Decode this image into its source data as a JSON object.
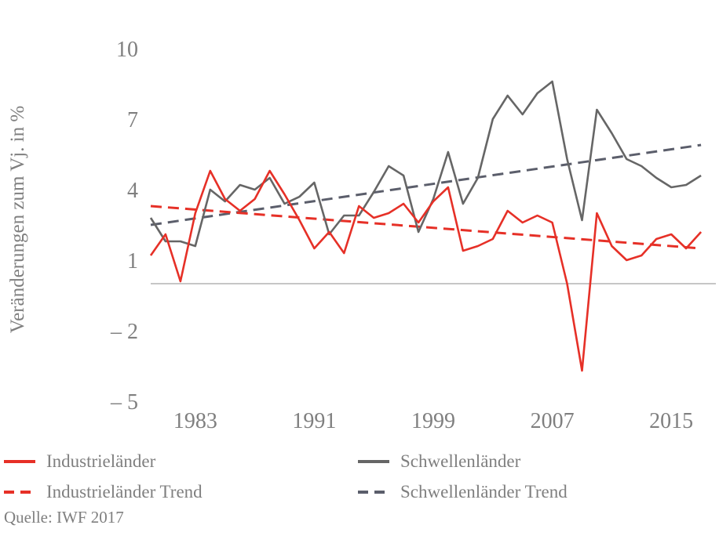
{
  "chart_data": {
    "type": "line",
    "title": "",
    "xlabel": "",
    "ylabel": "Veränderungen zum Vj. in %",
    "x": [
      1980,
      1981,
      1982,
      1983,
      1984,
      1985,
      1986,
      1987,
      1988,
      1989,
      1990,
      1991,
      1992,
      1993,
      1994,
      1995,
      1996,
      1997,
      1998,
      1999,
      2000,
      2001,
      2002,
      2003,
      2004,
      2005,
      2006,
      2007,
      2008,
      2009,
      2010,
      2011,
      2012,
      2013,
      2014,
      2015,
      2016,
      2017,
      2018
    ],
    "xticks": [
      "1983",
      "1991",
      "1999",
      "2007",
      "2015"
    ],
    "yticks": [
      "10",
      "7",
      "4",
      "1",
      "– 2",
      "– 5"
    ],
    "ylim": [
      -5,
      10
    ],
    "xlim": [
      1980,
      2018
    ],
    "baseline": 0,
    "grid": false,
    "series": [
      {
        "name": "Industrieländer",
        "style": "solid",
        "color": "#e63027",
        "values": [
          1.2,
          2.1,
          0.1,
          3.0,
          4.8,
          3.6,
          3.1,
          3.6,
          4.8,
          3.8,
          2.7,
          1.5,
          2.2,
          1.3,
          3.3,
          2.8,
          3.0,
          3.4,
          2.6,
          3.5,
          4.1,
          1.4,
          1.6,
          1.9,
          3.1,
          2.6,
          2.9,
          2.6,
          0.0,
          -3.7,
          3.0,
          1.6,
          1.0,
          1.2,
          1.9,
          2.1,
          1.5,
          2.2,
          null
        ]
      },
      {
        "name": "Schwellenländer",
        "style": "solid",
        "color": "#666666",
        "values": [
          2.8,
          1.8,
          1.8,
          1.6,
          4.0,
          3.5,
          4.2,
          4.0,
          4.5,
          3.4,
          3.7,
          4.3,
          2.1,
          2.9,
          2.9,
          3.9,
          5.0,
          4.6,
          2.2,
          3.6,
          5.6,
          3.4,
          4.5,
          7.0,
          8.0,
          7.2,
          8.1,
          8.6,
          5.3,
          2.7,
          7.4,
          6.4,
          5.3,
          5.0,
          4.5,
          4.1,
          4.2,
          4.6,
          null
        ]
      },
      {
        "name": "Industrieländer Trend",
        "style": "dashed",
        "color": "#e63027",
        "values": [
          3.3,
          null,
          null,
          null,
          null,
          null,
          null,
          null,
          null,
          null,
          null,
          null,
          null,
          null,
          null,
          null,
          null,
          null,
          null,
          null,
          null,
          null,
          null,
          null,
          null,
          null,
          null,
          null,
          null,
          null,
          null,
          null,
          null,
          null,
          null,
          null,
          null,
          1.5,
          null
        ]
      },
      {
        "name": "Schwellenländer Trend",
        "style": "dashed",
        "color": "#5b5e6b",
        "values": [
          2.5,
          null,
          null,
          null,
          null,
          null,
          null,
          null,
          null,
          null,
          null,
          null,
          null,
          null,
          null,
          null,
          null,
          null,
          null,
          null,
          null,
          null,
          null,
          null,
          null,
          null,
          null,
          null,
          null,
          null,
          null,
          null,
          null,
          null,
          null,
          null,
          null,
          5.9,
          null
        ]
      }
    ],
    "legend_position": "bottom"
  },
  "legend": {
    "industrie": "Industrieländer",
    "schwellen": "Schwellenländer",
    "industrie_trend": "Industrieländer Trend",
    "schwellen_trend": "Schwellenländer Trend"
  },
  "source": "Quelle: IWF 2017"
}
